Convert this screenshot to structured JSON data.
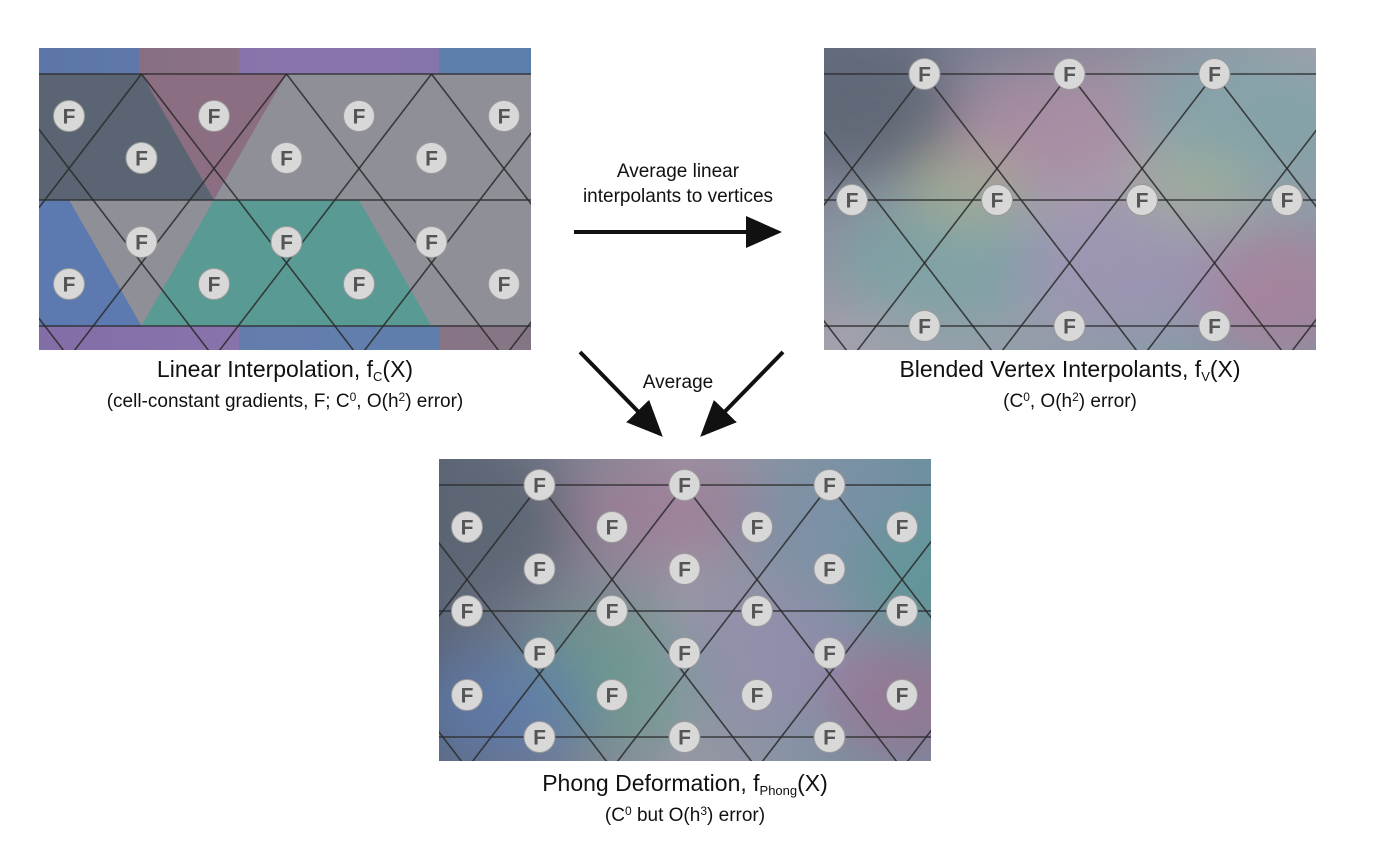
{
  "figure": {
    "panels": [
      {
        "id": "linear",
        "title_main": "Linear Interpolation, f",
        "title_sub": "C",
        "title_end": "(X)",
        "subtitle_pre": "(cell-constant gradients, F;  C",
        "subtitle_sup1": "0",
        "subtitle_mid": ", O(h",
        "subtitle_sup2": "2",
        "subtitle_end": ") error)"
      },
      {
        "id": "blended",
        "title_main": "Blended Vertex Interpolants, f",
        "title_sub": "V",
        "title_end": "(X)",
        "subtitle_pre": "(C",
        "subtitle_sup1": "0",
        "subtitle_mid": ", O(h",
        "subtitle_sup2": "2",
        "subtitle_end": ") error)"
      },
      {
        "id": "phong",
        "title_main": "Phong Deformation, f",
        "title_sub": "Phong",
        "title_end": "(X)",
        "subtitle_pre": "(C",
        "subtitle_sup1": "0",
        "subtitle_mid": " but O(h",
        "subtitle_sup2": "3",
        "subtitle_end": ") error)"
      }
    ],
    "arrow_labels": {
      "to_vertices_line1": "Average linear",
      "to_vertices_line2": "interpolants to vertices",
      "average": "Average"
    },
    "marker_letter": "F",
    "palette": {
      "slate": "#5a6472",
      "gray": "#8f8f98",
      "teal": "#5a9a94",
      "mauve": "#8c6e82",
      "blue": "#5c7ab0",
      "purple": "#8a70b0",
      "green": "#62a08c",
      "grid_line": "#2a2a2a",
      "marker_fill": "#d8d8d8",
      "marker_text": "#555555"
    }
  }
}
